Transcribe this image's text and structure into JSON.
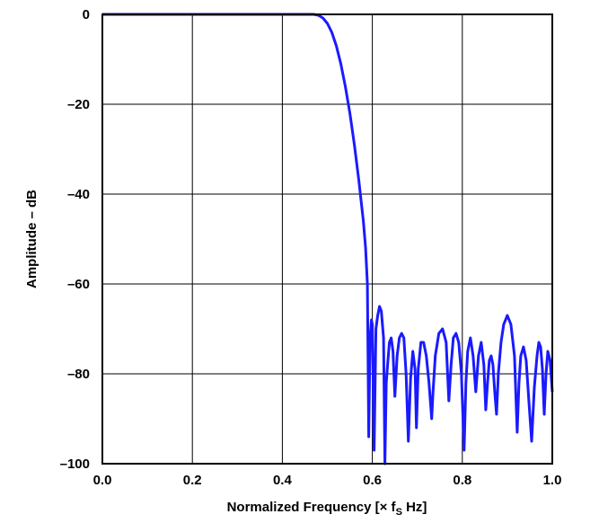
{
  "chart_data": {
    "type": "line",
    "xlabel": "Normalized Frequency [× f",
    "xlabel_sub": "S",
    "xlabel_tail": " Hz]",
    "ylabel": "Amplitude – dB",
    "xlim": [
      0.0,
      1.0
    ],
    "ylim": [
      -100,
      0
    ],
    "x_ticks": [
      "0.0",
      "0.2",
      "0.4",
      "0.6",
      "0.8",
      "1.0"
    ],
    "y_ticks": [
      "0",
      "–20",
      "–40",
      "–60",
      "–80",
      "–100"
    ],
    "grid": true,
    "line_color": "#1a1aff",
    "series": [
      {
        "x": [
          0.0,
          0.1,
          0.2,
          0.3,
          0.4,
          0.47,
          0.48,
          0.49,
          0.5,
          0.51,
          0.52,
          0.53,
          0.54,
          0.55,
          0.56,
          0.57,
          0.58,
          0.585,
          0.589,
          0.592,
          0.595,
          0.598,
          0.6,
          0.604,
          0.608,
          0.612,
          0.616,
          0.62,
          0.625,
          0.628,
          0.631,
          0.634,
          0.638,
          0.642,
          0.646,
          0.65,
          0.655,
          0.66,
          0.665,
          0.67,
          0.675,
          0.68,
          0.685,
          0.69,
          0.695,
          0.698,
          0.702,
          0.708,
          0.714,
          0.72,
          0.726,
          0.732,
          0.735,
          0.74,
          0.748,
          0.756,
          0.764,
          0.77,
          0.775,
          0.78,
          0.786,
          0.792,
          0.798,
          0.804,
          0.808,
          0.812,
          0.818,
          0.824,
          0.83,
          0.836,
          0.842,
          0.848,
          0.852,
          0.856,
          0.86,
          0.864,
          0.868,
          0.872,
          0.876,
          0.88,
          0.886,
          0.892,
          0.9,
          0.908,
          0.916,
          0.922,
          0.926,
          0.93,
          0.936,
          0.942,
          0.948,
          0.954,
          0.96,
          0.966,
          0.97,
          0.974,
          0.978,
          0.982,
          0.986,
          0.99,
          0.995,
          1.0
        ],
        "y": [
          0,
          0,
          0,
          0,
          0,
          0,
          -0.2,
          -0.8,
          -2,
          -4,
          -7,
          -11,
          -16,
          -22,
          -29,
          -37,
          -46,
          -52,
          -60,
          -94,
          -72,
          -68,
          -69,
          -97,
          -70,
          -67,
          -65,
          -66,
          -72,
          -100,
          -82,
          -78,
          -73,
          -72,
          -75,
          -85,
          -76,
          -72,
          -71,
          -72,
          -80,
          -95,
          -81,
          -75,
          -79,
          -92,
          -79,
          -73,
          -73,
          -76,
          -82,
          -90,
          -84,
          -76,
          -71,
          -70,
          -73,
          -86,
          -78,
          -72,
          -71,
          -73,
          -80,
          -97,
          -82,
          -75,
          -72,
          -76,
          -84,
          -76,
          -73,
          -78,
          -88,
          -82,
          -77,
          -76,
          -78,
          -84,
          -89,
          -80,
          -73,
          -69,
          -67,
          -69,
          -76,
          -93,
          -82,
          -76,
          -74,
          -77,
          -86,
          -95,
          -83,
          -76,
          -73,
          -74,
          -79,
          -89,
          -80,
          -75,
          -77,
          -84
        ]
      }
    ]
  }
}
